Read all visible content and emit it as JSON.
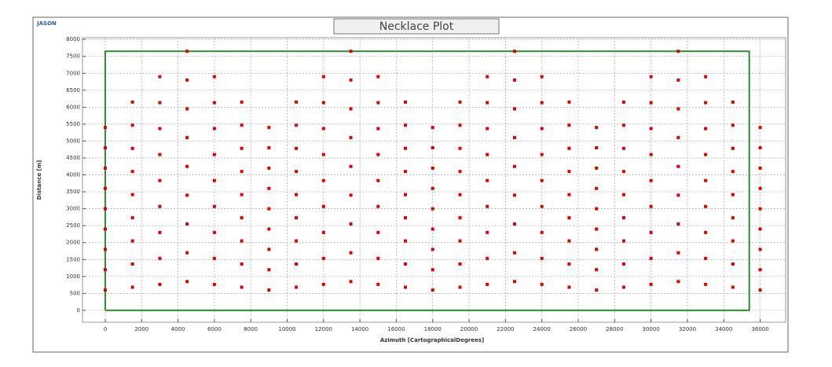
{
  "brand": "JASON",
  "chart_data": {
    "type": "scatter",
    "title": "Necklace Plot",
    "x_label": "Azimuth [CartographicalDegrees]",
    "y_label": "Distance [m]",
    "x": [
      0,
      1500,
      3000,
      4500,
      6000,
      7500,
      9000,
      10500,
      12000,
      13500,
      15000,
      16500,
      18000,
      19500,
      21000,
      22500,
      24000,
      25500,
      27000,
      28500,
      30000,
      31500,
      33000,
      34500,
      36000
    ],
    "series": [
      {
        "color": "#e00000",
        "values": [
          5400,
          6150,
          6900,
          7650,
          6900,
          6150,
          5400,
          6150,
          6900,
          7650,
          6900,
          6150,
          5400,
          6150,
          6900,
          7650,
          6900,
          6150,
          5400,
          6150,
          6900,
          7650,
          6900,
          6150,
          5400
        ]
      },
      {
        "color": "#e00000",
        "values": [
          4800,
          5467,
          6133,
          6800,
          6133,
          5467,
          4800,
          5467,
          6133,
          6800,
          6133,
          5467,
          4800,
          5467,
          6133,
          6800,
          6133,
          5467,
          4800,
          5467,
          6133,
          6800,
          6133,
          5467,
          4800
        ]
      },
      {
        "color": "#e00000",
        "values": [
          4200,
          4783,
          5367,
          5950,
          5367,
          4783,
          4200,
          4783,
          5367,
          5950,
          5367,
          4783,
          4200,
          4783,
          5367,
          5950,
          5367,
          4783,
          4200,
          4783,
          5367,
          5950,
          5367,
          4783,
          4200
        ]
      },
      {
        "color": "#e00000",
        "values": [
          3600,
          4100,
          4600,
          5100,
          4600,
          4100,
          3600,
          4100,
          4600,
          5100,
          4600,
          4100,
          3600,
          4100,
          4600,
          5100,
          4600,
          4100,
          3600,
          4100,
          4600,
          5100,
          4600,
          4100,
          3600
        ]
      },
      {
        "color": "#e00000",
        "values": [
          3000,
          3417,
          3833,
          4250,
          3833,
          3417,
          3000,
          3417,
          3833,
          4250,
          3833,
          3417,
          3000,
          3417,
          3833,
          4250,
          3833,
          3417,
          3000,
          3417,
          3833,
          4250,
          3833,
          3417,
          3000
        ]
      },
      {
        "color": "#e00000",
        "values": [
          2400,
          2733,
          3067,
          3400,
          3067,
          2733,
          2400,
          2733,
          3067,
          3400,
          3067,
          2733,
          2400,
          2733,
          3067,
          3400,
          3067,
          2733,
          2400,
          2733,
          3067,
          3400,
          3067,
          2733,
          2400
        ]
      },
      {
        "color": "#e00000",
        "values": [
          1800,
          2050,
          2300,
          2550,
          2300,
          2050,
          1800,
          2050,
          2300,
          2550,
          2300,
          2050,
          1800,
          2050,
          2300,
          2550,
          2300,
          2050,
          1800,
          2050,
          2300,
          2550,
          2300,
          2050,
          1800
        ]
      },
      {
        "color": "#e00000",
        "values": [
          1200,
          1367,
          1533,
          1700,
          1533,
          1367,
          1200,
          1367,
          1533,
          1700,
          1533,
          1367,
          1200,
          1367,
          1533,
          1700,
          1533,
          1367,
          1200,
          1367,
          1533,
          1700,
          1533,
          1367,
          1200
        ]
      },
      {
        "color": "#e00000",
        "values": [
          600,
          683,
          767,
          850,
          767,
          683,
          600,
          683,
          767,
          850,
          767,
          683,
          600,
          683,
          767,
          850,
          767,
          683,
          600,
          683,
          767,
          850,
          767,
          683,
          600
        ]
      }
    ],
    "boundary": {
      "color": "#2e8b2e",
      "x": [
        0,
        35400,
        35400,
        0,
        0
      ],
      "y": [
        0,
        0,
        7650,
        7650,
        0
      ]
    },
    "xlim": [
      -1250,
      37400
    ],
    "ylim": [
      -350,
      8050
    ],
    "xticks": [
      0,
      2000,
      4000,
      6000,
      8000,
      10000,
      12000,
      14000,
      16000,
      18000,
      20000,
      22000,
      24000,
      26000,
      28000,
      30000,
      32000,
      34000,
      36000
    ],
    "yticks": [
      0,
      500,
      1000,
      1500,
      2000,
      2500,
      3000,
      3500,
      4000,
      4500,
      5000,
      5500,
      6000,
      6500,
      7000,
      7500,
      8000
    ],
    "grid": true
  }
}
